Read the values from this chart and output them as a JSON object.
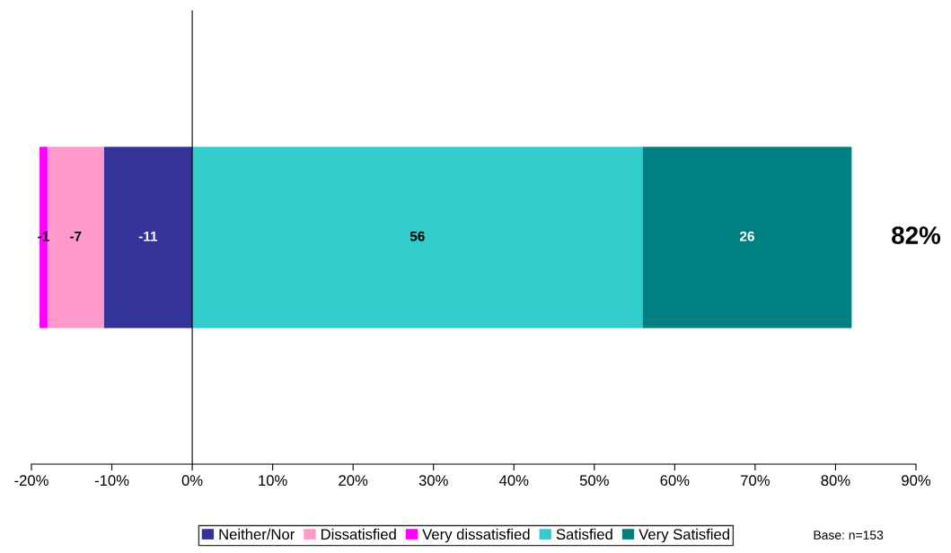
{
  "chart_data": {
    "type": "bar",
    "orientation": "horizontal",
    "stacked": true,
    "categories": [
      null
    ],
    "series": [
      {
        "name": "Neither/Nor",
        "color": "#333399",
        "values": [
          -11
        ]
      },
      {
        "name": "Dissatisfied",
        "color": "#ff99cc",
        "values": [
          -7
        ]
      },
      {
        "name": "Very dissatisfied",
        "color": "#ff00ff",
        "values": [
          -1
        ]
      },
      {
        "name": "Satisfied",
        "color": "#33cccc",
        "values": [
          56
        ]
      },
      {
        "name": "Very Satisfied",
        "color": "#008080",
        "values": [
          26
        ]
      }
    ],
    "xlim": [
      -20,
      90
    ],
    "xticks": [
      {
        "value": -20,
        "label": "-20%"
      },
      {
        "value": -10,
        "label": "-10%"
      },
      {
        "value": 0,
        "label": "0%"
      },
      {
        "value": 10,
        "label": "10%"
      },
      {
        "value": 20,
        "label": "20%"
      },
      {
        "value": 30,
        "label": "30%"
      },
      {
        "value": 40,
        "label": "40%"
      },
      {
        "value": 50,
        "label": "50%"
      },
      {
        "value": 60,
        "label": "60%"
      },
      {
        "value": 70,
        "label": "70%"
      },
      {
        "value": 80,
        "label": "80%"
      },
      {
        "value": 90,
        "label": "90%"
      }
    ],
    "data_labels": true,
    "legend": "bottom",
    "annotations": [
      "82%",
      "Base: n=153"
    ]
  }
}
